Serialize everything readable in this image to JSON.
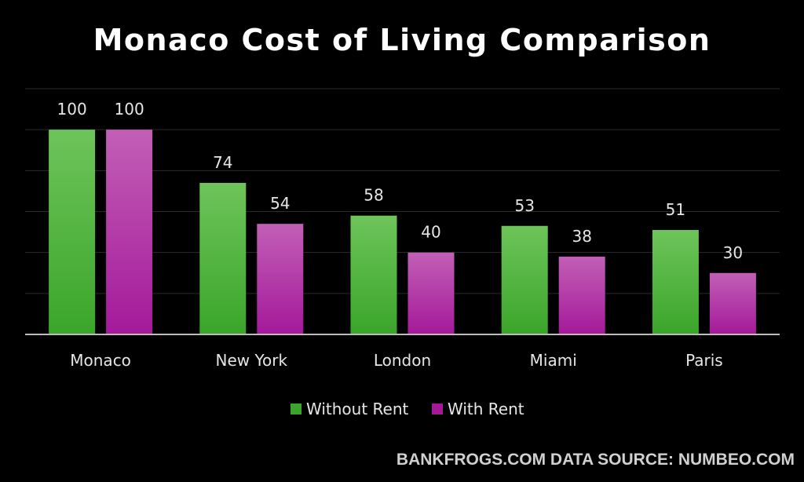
{
  "chart_data": {
    "type": "bar",
    "title": "Monaco Cost of Living Comparison",
    "categories": [
      "Monaco",
      "New York",
      "London",
      "Miami",
      "Paris"
    ],
    "series": [
      {
        "name": "Without Rent",
        "values": [
          100,
          74,
          58,
          53,
          51
        ],
        "color_top": "#6ec45a",
        "color_bottom": "#3aa52a"
      },
      {
        "name": "With Rent",
        "values": [
          100,
          54,
          40,
          38,
          30
        ],
        "color_top": "#c25fb6",
        "color_bottom": "#a4199a"
      }
    ],
    "ylim": [
      0,
      120
    ],
    "grid": true,
    "legend_position": "bottom-center",
    "xlabel": "",
    "ylabel": ""
  },
  "footer": {
    "source": "BANKFROGS.COM DATA SOURCE: NUMBEO.COM"
  }
}
